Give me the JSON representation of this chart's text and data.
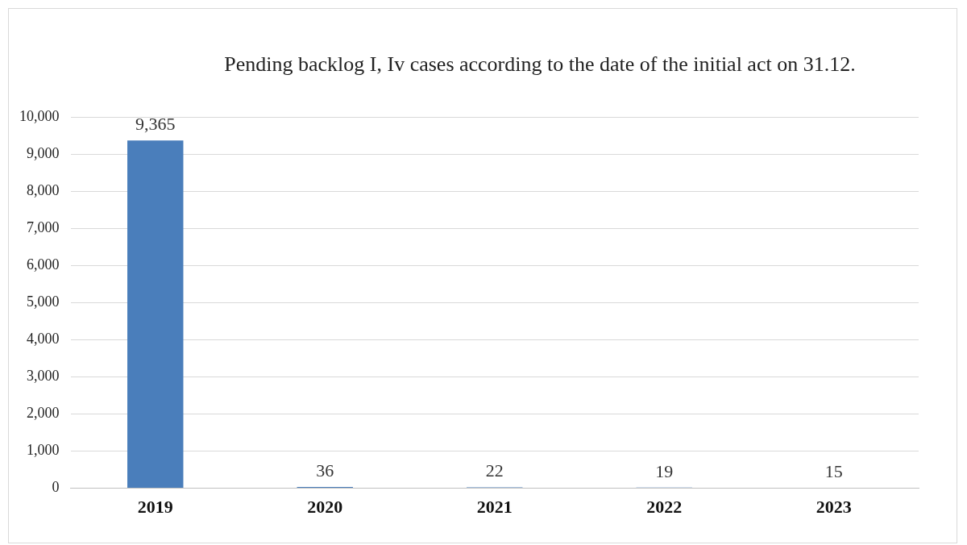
{
  "chart_data": {
    "type": "bar",
    "title": "Pending backlog I, Iv cases according to the date of the initial act on 31.12.",
    "categories": [
      "2019",
      "2020",
      "2021",
      "2022",
      "2023"
    ],
    "values": [
      9365,
      36,
      22,
      19,
      15
    ],
    "value_labels": [
      "9,365",
      "36",
      "22",
      "19",
      "15"
    ],
    "color": "#4a7ebb",
    "ylim": [
      0,
      10000
    ],
    "yticks": [
      0,
      {
        "value": 1000,
        "label": "1,000"
      },
      {
        "value": 2000,
        "label": "2,000"
      },
      {
        "value": 3000,
        "label": "3,000"
      },
      {
        "value": 4000,
        "label": "4,000"
      },
      {
        "value": 5000,
        "label": "5,000"
      },
      {
        "value": 6000,
        "label": "6,000"
      },
      {
        "value": 7000,
        "label": "7,000"
      },
      {
        "value": 8000,
        "label": "8,000"
      },
      {
        "value": 9000,
        "label": "9,000"
      },
      {
        "value": 10000,
        "label": "10,000"
      }
    ],
    "grid": "y",
    "legend": false
  }
}
